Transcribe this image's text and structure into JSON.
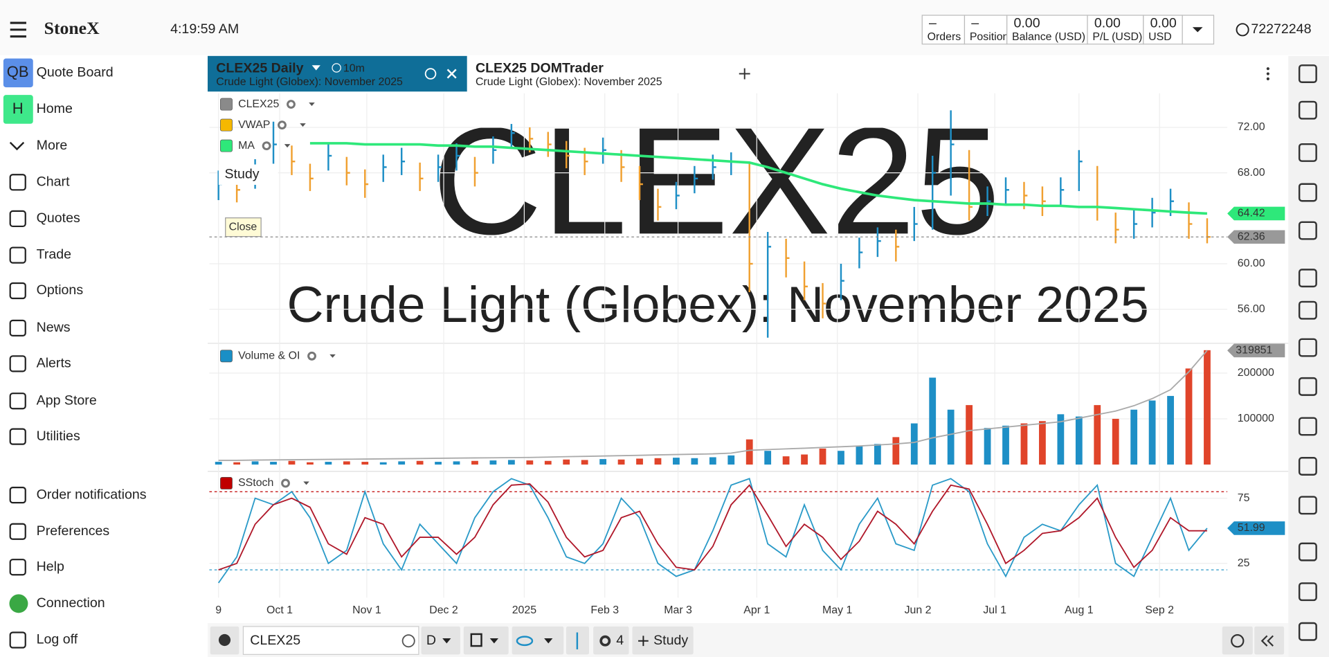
{
  "header": {
    "brand": "StoneX",
    "time": "4:19:59 AM",
    "account": [
      {
        "value": "–",
        "label": "Orders"
      },
      {
        "value": "–",
        "label": "Positions"
      },
      {
        "value": "0.00",
        "label": "Balance (USD)"
      },
      {
        "value": "0.00",
        "label": "P/L (USD)"
      },
      {
        "value": "0.00",
        "label": "USD"
      }
    ],
    "account_id": "72272248"
  },
  "sidebar": {
    "badges": [
      "QB",
      "H"
    ],
    "items": [
      "Quote Board",
      "Home",
      "More",
      "Chart",
      "Quotes",
      "Trade",
      "Options",
      "News",
      "Alerts",
      "App Store",
      "Utilities",
      "Order notifications",
      "Preferences",
      "Help",
      "Connection",
      "Log off"
    ]
  },
  "tabs": [
    {
      "title": "CLEX25 Daily",
      "interval": "10m",
      "subtitle": "Crude Light (Globex): November 2025"
    },
    {
      "title": "CLEX25 DOMTrader",
      "subtitle": "Crude Light (Globex): November 2025"
    }
  ],
  "chart_data": {
    "type": "ohlc",
    "symbol": "CLEX25",
    "description": "Crude Light (Globex): November 2025",
    "legend": [
      "CLEX25",
      "VWAP",
      "MA"
    ],
    "legend_colors": [
      "#8a8a8a",
      "#f5b800",
      "#2ee87a"
    ],
    "add_study": "Study",
    "tooltip": "Close",
    "x": [
      0.5,
      1.5,
      2.5,
      3.5,
      4.5,
      5.5,
      6.5,
      7.5,
      8.5,
      9.5,
      10.5,
      11.5,
      12.5,
      13.5,
      14.5,
      15.5,
      16.5,
      17.5,
      18.5,
      19.5,
      20.5,
      21.5,
      22.5,
      23.5,
      24.5,
      25.5,
      26.5,
      27.5,
      28.5,
      29.5,
      30.5,
      31.5,
      32.5,
      33.5,
      34.5,
      35.5,
      36.5,
      37.5,
      38.5,
      39.5,
      40.5,
      41.5,
      42.5,
      43.5,
      44.5,
      45.5,
      46.5,
      47.5,
      48.5,
      49.5,
      50.5,
      51.5,
      52.5,
      53.5,
      54.5
    ],
    "xlim": [
      0,
      55.6
    ],
    "xticks": [
      {
        "value": 0.5,
        "label": "9"
      },
      {
        "value": 3.84,
        "label": "Oct 1"
      },
      {
        "value": 8.6,
        "label": "Nov 1"
      },
      {
        "value": 12.8,
        "label": "Dec 2"
      },
      {
        "value": 17.2,
        "label": "2025"
      },
      {
        "value": 21.6,
        "label": "Feb 3"
      },
      {
        "value": 25.6,
        "label": "Mar 3"
      },
      {
        "value": 29.9,
        "label": "Apr 1"
      },
      {
        "value": 34.3,
        "label": "May 1"
      },
      {
        "value": 38.7,
        "label": "Jun 2"
      },
      {
        "value": 42.9,
        "label": "Jul 1"
      },
      {
        "value": 47.5,
        "label": "Aug 1"
      },
      {
        "value": 51.9,
        "label": "Sep 2"
      }
    ],
    "price": {
      "ylim": [
        53,
        75
      ],
      "yticks": [
        {
          "value": 56,
          "label": "56.00"
        },
        {
          "value": 60,
          "label": "60.00"
        },
        {
          "value": 68,
          "label": "68.00"
        },
        {
          "value": 72,
          "label": "72.00"
        }
      ],
      "up_color": "#1e8fc6",
      "down_color": "#f0a030",
      "ma_color": "#2ee87a",
      "close": [
        67.0,
        66.5,
        68.0,
        70.5,
        69.0,
        67.5,
        69.5,
        68.0,
        67.0,
        68.5,
        69.0,
        67.5,
        68.5,
        69.5,
        68.0,
        70.0,
        71.5,
        71.0,
        70.5,
        69.5,
        69.0,
        70.0,
        68.5,
        67.0,
        65.0,
        66.0,
        67.5,
        68.5,
        69.0,
        60.0,
        61.5,
        60.5,
        58.0,
        56.5,
        58.5,
        61.0,
        62.0,
        61.5,
        63.5,
        68.0,
        70.5,
        65.0,
        65.5,
        66.5,
        66.0,
        65.5,
        66.5,
        69.0,
        65.0,
        63.0,
        63.5,
        64.5,
        65.5,
        63.5,
        62.36
      ],
      "high": [
        68.2,
        67.8,
        69.2,
        72.5,
        70.4,
        68.8,
        70.6,
        69.4,
        68.3,
        69.6,
        70.2,
        68.9,
        69.6,
        70.6,
        69.4,
        71.2,
        72.3,
        72.0,
        71.6,
        70.8,
        70.2,
        71.1,
        70.0,
        68.6,
        66.6,
        67.2,
        68.6,
        69.6,
        69.8,
        68.8,
        62.8,
        62.2,
        60.2,
        58.3,
        60.0,
        62.3,
        63.2,
        63.0,
        65.0,
        69.5,
        73.5,
        70.0,
        66.8,
        67.6,
        67.2,
        66.8,
        67.6,
        70.0,
        68.6,
        64.5,
        64.8,
        65.8,
        66.6,
        65.4,
        64.0
      ],
      "low": [
        65.6,
        65.4,
        66.6,
        68.8,
        67.8,
        66.4,
        68.2,
        66.9,
        65.8,
        67.2,
        67.8,
        66.4,
        67.2,
        68.2,
        66.8,
        68.8,
        70.2,
        69.8,
        69.4,
        68.4,
        67.8,
        68.8,
        67.2,
        65.6,
        63.8,
        64.8,
        66.2,
        67.4,
        67.8,
        57.5,
        53.5,
        58.8,
        56.8,
        55.2,
        56.8,
        59.6,
        60.6,
        60.2,
        62.0,
        63.0,
        66.0,
        63.8,
        64.2,
        65.2,
        64.8,
        64.2,
        65.2,
        66.4,
        63.8,
        61.8,
        62.2,
        63.2,
        64.2,
        62.2,
        61.8
      ],
      "ma": [
        null,
        null,
        null,
        null,
        null,
        70.6,
        70.6,
        70.6,
        70.5,
        70.5,
        70.5,
        70.5,
        70.4,
        70.4,
        70.3,
        70.3,
        70.2,
        70.1,
        70.0,
        69.9,
        69.8,
        69.7,
        69.6,
        69.5,
        69.4,
        69.3,
        69.2,
        69.1,
        69.0,
        68.9,
        68.5,
        68.0,
        67.5,
        67.0,
        66.6,
        66.3,
        66.0,
        65.8,
        65.6,
        65.5,
        65.4,
        65.3,
        65.3,
        65.2,
        65.2,
        65.1,
        65.1,
        65.0,
        65.0,
        64.9,
        64.8,
        64.7,
        64.6,
        64.5,
        64.42
      ]
    },
    "volume": {
      "title": "Volume & OI",
      "color": "#1a8fc6",
      "up_color": "#1e8fc6",
      "down_color": "#e0442a",
      "oi_color": "#aaaaaa",
      "ylim": [
        0,
        265000
      ],
      "yticks": [
        100000,
        200000
      ],
      "y2lim": [
        0,
        340000
      ],
      "values": [
        6000,
        5000,
        7000,
        6000,
        8000,
        5000,
        6000,
        7000,
        6000,
        5000,
        7000,
        8000,
        6000,
        7000,
        8000,
        9000,
        10000,
        9000,
        8000,
        11000,
        10000,
        12000,
        11000,
        13000,
        14000,
        15000,
        14000,
        16000,
        20000,
        55000,
        30000,
        18000,
        22000,
        35000,
        30000,
        40000,
        45000,
        60000,
        90000,
        190000,
        120000,
        130000,
        80000,
        85000,
        90000,
        95000,
        110000,
        105000,
        130000,
        100000,
        120000,
        140000,
        150000,
        210000,
        250000
      ],
      "oi": [
        12000,
        12000,
        12500,
        13000,
        13500,
        14000,
        14500,
        15000,
        15500,
        16000,
        16500,
        17000,
        17500,
        18000,
        18500,
        19000,
        19500,
        20000,
        21000,
        22000,
        23000,
        24000,
        25000,
        26000,
        27000,
        28000,
        29000,
        30000,
        32000,
        40000,
        42000,
        44000,
        46000,
        48000,
        50000,
        52000,
        55000,
        58000,
        62000,
        75000,
        85000,
        95000,
        100000,
        105000,
        110000,
        115000,
        120000,
        130000,
        140000,
        150000,
        165000,
        185000,
        210000,
        260000,
        319851
      ]
    },
    "stoch": {
      "title": "SStoch",
      "color": "#c00000",
      "k_color": "#2a9ac8",
      "d_color": "#b0182a",
      "ylim": [
        0,
        93
      ],
      "yticks": [
        25,
        75
      ],
      "levels": [
        80,
        20
      ],
      "k": [
        10,
        30,
        75,
        70,
        80,
        60,
        25,
        35,
        80,
        40,
        20,
        55,
        40,
        25,
        60,
        80,
        90,
        85,
        60,
        30,
        25,
        40,
        75,
        60,
        25,
        15,
        20,
        50,
        85,
        90,
        40,
        30,
        70,
        35,
        20,
        55,
        75,
        40,
        35,
        85,
        90,
        80,
        40,
        15,
        45,
        55,
        50,
        70,
        85,
        25,
        15,
        45,
        75,
        35,
        51.99
      ],
      "d": [
        20,
        25,
        55,
        70,
        75,
        68,
        40,
        32,
        60,
        55,
        30,
        45,
        45,
        32,
        45,
        70,
        85,
        86,
        72,
        45,
        30,
        35,
        60,
        65,
        40,
        22,
        20,
        38,
        70,
        85,
        62,
        38,
        55,
        45,
        28,
        42,
        65,
        55,
        40,
        65,
        85,
        82,
        55,
        25,
        35,
        48,
        50,
        60,
        75,
        45,
        22,
        35,
        60,
        50,
        50
      ]
    }
  },
  "toolbar": {
    "symbol": "CLEX25",
    "period": "D",
    "studies_count": 4,
    "study_button": "Study"
  }
}
